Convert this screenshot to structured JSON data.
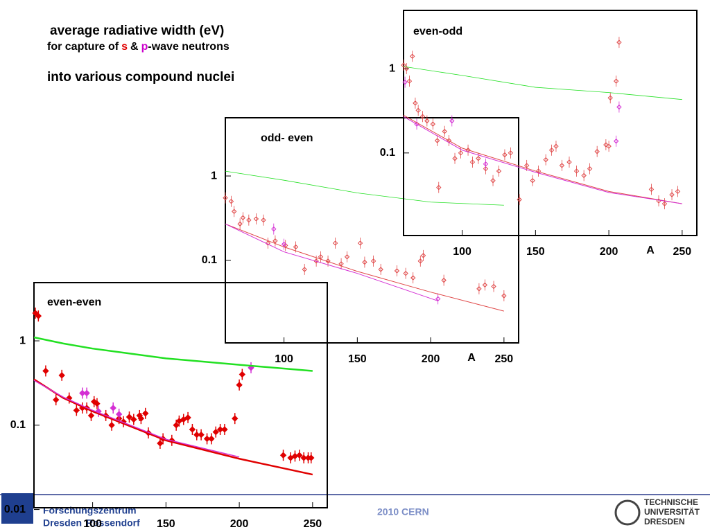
{
  "header": {
    "title": "average radiative width (eV)",
    "line2": [
      "for capture of",
      "s",
      "&",
      "p",
      "-wave neutrons"
    ],
    "line3": "into various compound nuclei"
  },
  "footer": {
    "left": [
      "Forschungszentrum",
      "Dresden",
      "Rossendorf"
    ],
    "center": "2010 CERN",
    "right": [
      "TECHNISCHE",
      "UNIVERSITÄT",
      "DRESDEN"
    ]
  },
  "chart_data": [
    {
      "type": "scatter",
      "title": "even-even",
      "log_y": true,
      "xlim": [
        60,
        260
      ],
      "ylim": [
        0.0105,
        4.9
      ],
      "xticks": [
        100,
        150,
        200,
        250
      ],
      "yticks": [
        0.01,
        0.1,
        1
      ],
      "series": [
        {
          "kind": "markers",
          "marker": "filled",
          "color": "#e00000",
          "x": [
            61,
            63,
            68,
            75,
            79,
            84,
            89,
            93,
            96,
            99,
            101,
            103,
            109,
            113,
            118,
            121,
            125,
            128,
            132,
            133,
            136,
            138,
            146,
            148,
            154,
            157,
            159,
            162,
            165,
            168,
            171,
            174,
            178,
            181,
            184,
            187,
            190,
            197,
            200,
            202,
            230,
            235,
            238,
            241,
            244,
            247,
            249
          ],
          "values": [
            2.13,
            1.97,
            0.44,
            0.2,
            0.39,
            0.21,
            0.15,
            0.16,
            0.16,
            0.13,
            0.19,
            0.18,
            0.13,
            0.1,
            0.12,
            0.11,
            0.125,
            0.117,
            0.13,
            0.12,
            0.138,
            0.081,
            0.061,
            0.069,
            0.066,
            0.1,
            0.112,
            0.117,
            0.123,
            0.089,
            0.077,
            0.077,
            0.069,
            0.069,
            0.083,
            0.089,
            0.089,
            0.12,
            0.3,
            0.4,
            0.044,
            0.041,
            0.043,
            0.044,
            0.041,
            0.041,
            0.041
          ]
        },
        {
          "kind": "markers",
          "marker": "filled",
          "color": "#d42fd4",
          "x": [
            93,
            96,
            104,
            114,
            118,
            208
          ],
          "values": [
            0.24,
            0.24,
            0.146,
            0.16,
            0.135,
            0.48
          ]
        },
        {
          "kind": "line",
          "width": 2.5,
          "color": "#22e022",
          "x": [
            60,
            80,
            100,
            150,
            200,
            250
          ],
          "values": [
            1.1,
            0.93,
            0.81,
            0.62,
            0.52,
            0.44
          ]
        },
        {
          "kind": "line",
          "width": 2.5,
          "color": "#e00000",
          "x": [
            60,
            80,
            100,
            150,
            200,
            250
          ],
          "values": [
            0.35,
            0.21,
            0.146,
            0.066,
            0.04,
            0.026
          ]
        },
        {
          "kind": "line",
          "width": 1.5,
          "color": "#d42fd4",
          "x": [
            60,
            80,
            100,
            150,
            200
          ],
          "values": [
            0.34,
            0.215,
            0.15,
            0.068,
            0.042
          ]
        }
      ]
    },
    {
      "type": "scatter",
      "title": "odd- even",
      "x_label": "A",
      "log_y": true,
      "xlim": [
        60,
        260
      ],
      "ylim": [
        0.0105,
        4.9
      ],
      "xticks": [
        100,
        150,
        200,
        250
      ],
      "yticks": [
        0.1,
        1
      ],
      "series": [
        {
          "kind": "markers",
          "marker": "hollow",
          "color": "#e04848",
          "x": [
            60,
            64,
            66,
            70,
            72,
            76,
            81,
            86,
            89,
            94,
            101,
            108,
            114,
            122,
            125,
            130,
            135,
            139,
            143,
            152,
            155,
            161,
            166,
            177,
            183,
            188,
            193,
            195,
            209,
            233,
            237,
            243,
            250
          ],
          "values": [
            0.55,
            0.5,
            0.38,
            0.27,
            0.32,
            0.3,
            0.31,
            0.3,
            0.16,
            0.17,
            0.15,
            0.144,
            0.078,
            0.098,
            0.11,
            0.098,
            0.16,
            0.091,
            0.11,
            0.16,
            0.095,
            0.098,
            0.078,
            0.075,
            0.07,
            0.062,
            0.098,
            0.114,
            0.058,
            0.046,
            0.051,
            0.049,
            0.038
          ]
        },
        {
          "kind": "markers",
          "marker": "hollow",
          "color": "#d42fd4",
          "x": [
            93,
            100,
            205
          ],
          "values": [
            0.235,
            0.155,
            0.035
          ]
        },
        {
          "kind": "line",
          "width": 0.8,
          "color": "#22e022",
          "x": [
            60,
            100,
            150,
            200,
            250
          ],
          "values": [
            1.14,
            0.89,
            0.63,
            0.49,
            0.45
          ]
        },
        {
          "kind": "line",
          "width": 1,
          "color": "#e04848",
          "x": [
            60,
            100,
            150,
            200,
            250
          ],
          "values": [
            0.27,
            0.144,
            0.074,
            0.042,
            0.025
          ]
        },
        {
          "kind": "line",
          "width": 1,
          "color": "#d42fd4",
          "x": [
            60,
            100,
            150,
            205
          ],
          "values": [
            0.27,
            0.126,
            0.07,
            0.033
          ]
        }
      ]
    },
    {
      "type": "scatter",
      "title": "even-odd",
      "x_label": "A",
      "log_y": true,
      "xlim": [
        60,
        260
      ],
      "ylim": [
        0.0105,
        4.9
      ],
      "xticks": [
        100,
        150,
        200,
        250
      ],
      "yticks": [
        0.1,
        1
      ],
      "series": [
        {
          "kind": "markers",
          "marker": "hollow",
          "color": "#e04848",
          "x": [
            60,
            62,
            66,
            64,
            68,
            70,
            73,
            76,
            80,
            83,
            84,
            88,
            91,
            95,
            99,
            104,
            107,
            111,
            116,
            121,
            125,
            129,
            133,
            139,
            144,
            148,
            152,
            157,
            161,
            164,
            168,
            173,
            178,
            183,
            187,
            192,
            198,
            200,
            201,
            205,
            207,
            229,
            234,
            238,
            243,
            247
          ],
          "values": [
            1.1,
            1.0,
            1.4,
            0.71,
            0.39,
            0.32,
            0.27,
            0.24,
            0.22,
            0.14,
            0.039,
            0.18,
            0.14,
            0.086,
            0.1,
            0.108,
            0.078,
            0.086,
            0.065,
            0.047,
            0.061,
            0.095,
            0.1,
            0.028,
            0.071,
            0.047,
            0.061,
            0.083,
            0.108,
            0.12,
            0.071,
            0.078,
            0.061,
            0.054,
            0.065,
            0.104,
            0.125,
            0.12,
            0.45,
            0.71,
            2.05,
            0.037,
            0.027,
            0.025,
            0.032,
            0.035
          ]
        },
        {
          "kind": "markers",
          "marker": "hollow",
          "color": "#d42fd4",
          "x": [
            61,
            69,
            93,
            116,
            205,
            207
          ],
          "values": [
            0.69,
            0.22,
            0.24,
            0.074,
            0.138,
            0.35
          ]
        },
        {
          "kind": "line",
          "width": 0.8,
          "color": "#22e022",
          "x": [
            60,
            100,
            150,
            200,
            250
          ],
          "values": [
            1.06,
            0.83,
            0.6,
            0.52,
            0.43
          ]
        },
        {
          "kind": "line",
          "width": 1,
          "color": "#e04848",
          "x": [
            60,
            100,
            150,
            200,
            250
          ],
          "values": [
            0.28,
            0.114,
            0.061,
            0.035,
            0.025
          ]
        },
        {
          "kind": "line",
          "width": 1,
          "color": "#d42fd4",
          "x": [
            60,
            100,
            150,
            200,
            250
          ],
          "values": [
            0.27,
            0.108,
            0.059,
            0.034,
            0.025
          ]
        }
      ]
    }
  ]
}
